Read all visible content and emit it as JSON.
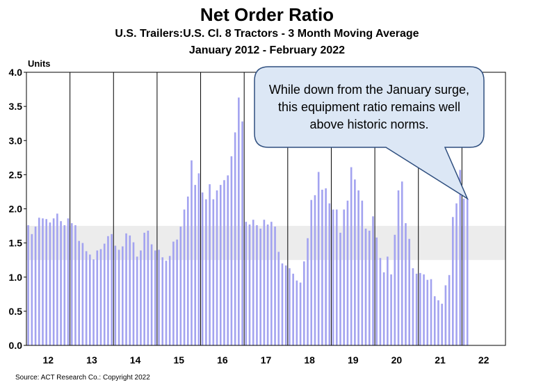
{
  "chart_data": {
    "type": "bar",
    "title": "Net Order Ratio",
    "subtitle": "U.S. Trailers:U.S. Cl. 8 Tractors - 3 Month Moving Average",
    "subtitle2": "January 2012 - February 2022",
    "ylabel": "Units",
    "ylim": [
      0,
      4.0
    ],
    "yticks": [
      "0.0",
      "0.5",
      "1.0",
      "1.5",
      "2.0",
      "2.5",
      "3.0",
      "3.5",
      "4.0"
    ],
    "xtick_labels": [
      "12",
      "13",
      "14",
      "15",
      "16",
      "17",
      "18",
      "19",
      "20",
      "21",
      "22"
    ],
    "normal_band": [
      1.25,
      1.75
    ],
    "annotation": "While down from the January surge, this equipment ratio remains well above historic norms.",
    "source": "Source:  ACT Research Co.: Copyright  2022",
    "colors": {
      "bar": "#a3a3f0",
      "band": "#ececec",
      "grid": "#000000"
    },
    "series": [
      {
        "values": [
          1.76,
          1.63,
          1.74,
          1.87,
          1.86,
          1.85,
          1.8,
          1.86,
          1.93,
          1.82,
          1.76,
          1.86,
          1.79,
          1.76,
          1.53,
          1.5,
          1.38,
          1.33,
          1.26,
          1.39,
          1.41,
          1.49,
          1.6,
          1.63,
          1.46,
          1.4,
          1.45,
          1.64,
          1.61,
          1.51,
          1.3,
          1.39,
          1.65,
          1.68,
          1.48,
          1.39,
          1.4,
          1.29,
          1.24,
          1.31,
          1.52,
          1.55,
          1.74,
          1.99,
          2.18,
          2.71,
          2.35,
          2.52,
          2.24,
          2.14,
          2.36,
          2.14,
          2.27,
          2.35,
          2.42,
          2.49,
          2.77,
          3.12,
          3.63,
          3.28,
          1.81,
          1.77,
          1.84,
          1.76,
          1.71,
          1.84,
          1.77,
          1.81,
          1.74,
          1.37,
          1.2,
          1.17,
          1.13,
          1.05,
          0.95,
          0.92,
          1.23,
          1.57,
          2.13,
          2.2,
          2.54,
          2.28,
          2.3,
          2.08,
          1.99,
          1.99,
          1.65,
          1.99,
          2.12,
          2.61,
          2.43,
          2.27,
          2.12,
          1.71,
          1.68,
          1.89,
          1.58,
          1.28,
          1.07,
          1.3,
          1.04,
          1.62,
          2.27,
          2.4,
          1.79,
          1.56,
          1.13,
          1.05,
          1.06,
          1.04,
          0.96,
          0.97,
          0.72,
          0.66,
          0.61,
          0.88,
          1.03,
          1.88,
          2.08,
          2.57,
          2.15,
          2.15
        ]
      }
    ]
  }
}
